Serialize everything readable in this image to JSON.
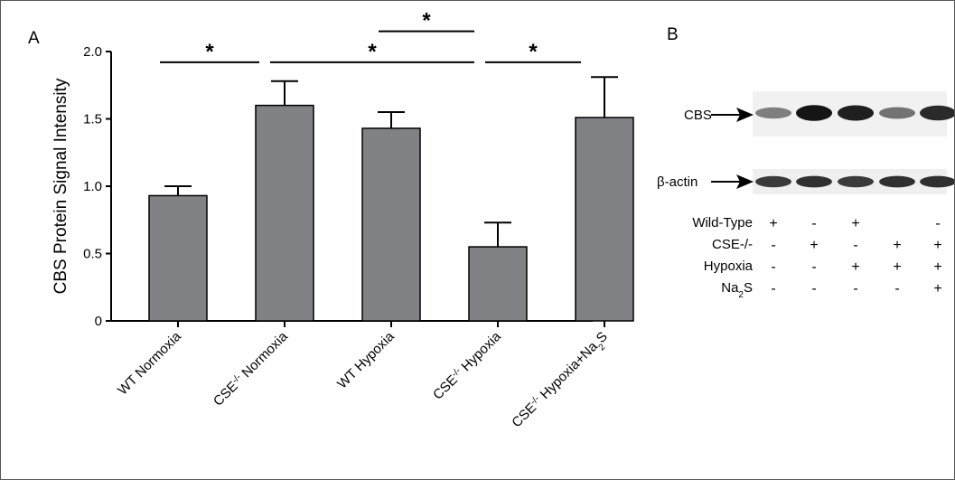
{
  "panels": {
    "a": "A",
    "b": "B"
  },
  "chart_data": {
    "type": "bar",
    "ylabel": "CBS Protein Signal Intensity",
    "ylim": [
      0,
      2.0
    ],
    "yticks": [
      "0",
      "0.5",
      "1.0",
      "1.5",
      "2.0"
    ],
    "categories": [
      {
        "main": "WT Normoxia",
        "sup": "",
        "rest": "",
        "sub": ""
      },
      {
        "main": "CSE",
        "sup": "-/-",
        "rest": " Normoxia",
        "sub": ""
      },
      {
        "main": "WT Hypoxia",
        "sup": "",
        "rest": "",
        "sub": ""
      },
      {
        "main": "CSE",
        "sup": "-/-",
        "rest": " Hypoxia",
        "sub": ""
      },
      {
        "main": "CSE",
        "sup": "-/-",
        "rest": " Hypoxia+Na",
        "sub": "2",
        "tail": "S"
      }
    ],
    "values": [
      0.93,
      1.6,
      1.43,
      0.55,
      1.51
    ],
    "errors": [
      0.07,
      0.18,
      0.12,
      0.18,
      0.3
    ],
    "bar_color": "#808285",
    "significance": [
      {
        "from": 0,
        "to": 1,
        "label": "*",
        "y": 1.92
      },
      {
        "from": 1,
        "to": 3,
        "label": "*",
        "y": 1.92
      },
      {
        "from": 2,
        "to": 3,
        "label": "*",
        "y": 2.15
      },
      {
        "from": 3,
        "to": 4,
        "label": "*",
        "y": 1.92
      }
    ]
  },
  "blot": {
    "rows": [
      "CBS",
      "β-actin"
    ],
    "lanes": 5,
    "cbs_intensity": [
      0.45,
      0.95,
      0.9,
      0.5,
      0.85
    ],
    "actin_intensity": [
      0.75,
      0.8,
      0.75,
      0.8,
      0.8
    ],
    "conditions": [
      {
        "label": "Wild-Type",
        "sup": "",
        "sub": "",
        "tail": "",
        "signs": [
          "+",
          "-",
          "+",
          "",
          "-"
        ]
      },
      {
        "label": "CSE-/-",
        "sup": "",
        "sub": "",
        "tail": "",
        "signs": [
          "-",
          "+",
          "-",
          "+",
          "+"
        ]
      },
      {
        "label": "Hypoxia",
        "sup": "",
        "sub": "",
        "tail": "",
        "signs": [
          "-",
          "-",
          "+",
          "+",
          "+"
        ]
      },
      {
        "label": "Na",
        "sup": "",
        "sub": "2",
        "tail": "S",
        "signs": [
          "-",
          "-",
          "-",
          "-",
          "+"
        ]
      }
    ]
  }
}
